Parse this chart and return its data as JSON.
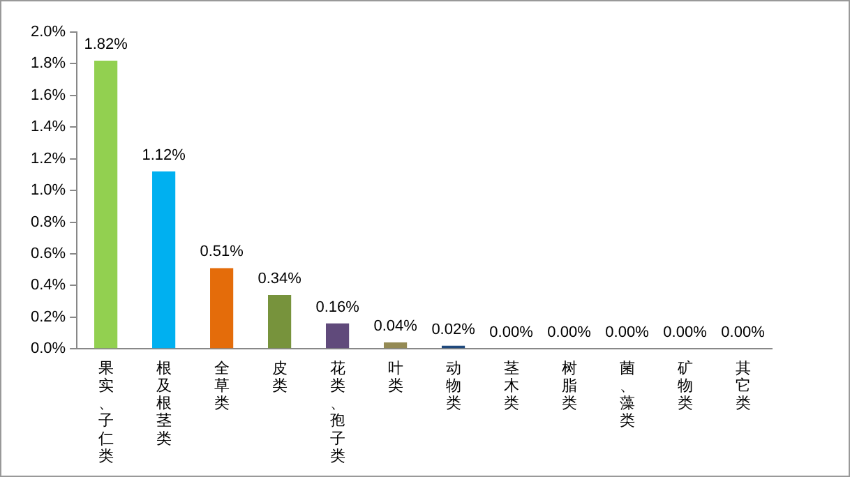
{
  "chart_data": {
    "type": "bar",
    "categories": [
      "果实、子仁类",
      "根及根茎类",
      "全草类",
      "皮类",
      "花类、孢子类",
      "叶类",
      "动物类",
      "茎木类",
      "树脂类",
      "菌、藻类",
      "矿物类",
      "其它类"
    ],
    "values": [
      1.82,
      1.12,
      0.51,
      0.34,
      0.16,
      0.04,
      0.02,
      0.0,
      0.0,
      0.0,
      0.0,
      0.0
    ],
    "value_labels": [
      "1.82%",
      "1.12%",
      "0.51%",
      "0.34%",
      "0.16%",
      "0.04%",
      "0.02%",
      "0.00%",
      "0.00%",
      "0.00%",
      "0.00%",
      "0.00%"
    ],
    "colors": [
      "#92d050",
      "#00b0f0",
      "#e46c0a",
      "#77933c",
      "#604a7b",
      "#948a54",
      "#1f497d",
      "#e6b9b8",
      "#c0c0c0",
      "#c0c0c0",
      "#c0c0c0",
      "#c0c0c0"
    ],
    "ylim": [
      0,
      2.0
    ],
    "yticks": [
      {
        "value": 0,
        "label": "0.0%"
      },
      {
        "value": 0.2,
        "label": "0.2%"
      },
      {
        "value": 0.4,
        "label": "0.4%"
      },
      {
        "value": 0.6,
        "label": "0.6%"
      },
      {
        "value": 0.8,
        "label": "0.8%"
      },
      {
        "value": 1.0,
        "label": "1.0%"
      },
      {
        "value": 1.2,
        "label": "1.2%"
      },
      {
        "value": 1.4,
        "label": "1.4%"
      },
      {
        "value": 1.6,
        "label": "1.6%"
      },
      {
        "value": 1.8,
        "label": "1.8%"
      },
      {
        "value": 2.0,
        "label": "2.0%"
      }
    ],
    "grid": false,
    "legend": false
  }
}
